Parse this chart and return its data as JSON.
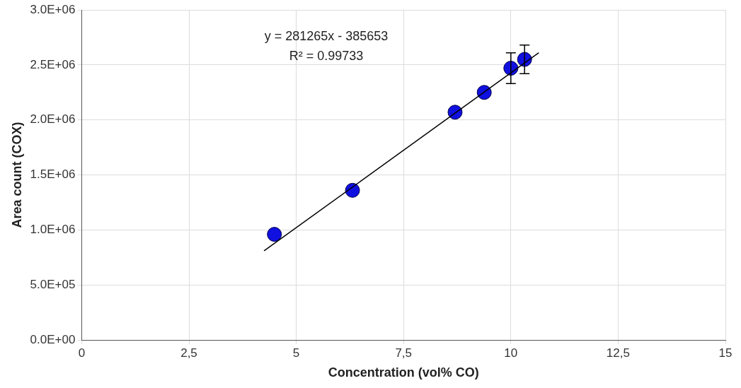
{
  "chart_data": {
    "type": "scatter",
    "xlabel": "Concentration (vol% CO)",
    "ylabel": "Area count (COX)",
    "annotations": [
      "y = 281265x - 385653",
      "R² = 0.99733"
    ],
    "xlim": [
      0,
      15
    ],
    "xticks": [
      0,
      {
        "value": 2.5,
        "label": "2,5"
      },
      5,
      {
        "value": 7.5,
        "label": "7,5"
      },
      10,
      {
        "value": 12.5,
        "label": "12,5"
      },
      15
    ],
    "ylim": [
      0,
      3000000
    ],
    "yticks": [
      {
        "value": 0,
        "label": "0.0E+00"
      },
      {
        "value": 500000,
        "label": "5.0E+05"
      },
      {
        "value": 1000000,
        "label": "1.0E+06"
      },
      {
        "value": 1500000,
        "label": "1.5E+06"
      },
      {
        "value": 2000000,
        "label": "2.0E+06"
      },
      {
        "value": 2500000,
        "label": "2.5E+06"
      },
      {
        "value": 3000000,
        "label": "3.0E+06"
      }
    ],
    "grid": true,
    "legend": false,
    "marker": "circle",
    "series": [
      {
        "type": "line",
        "color": "#000000",
        "marker": "none",
        "x": [
          4.25,
          10.65
        ],
        "values": [
          810000,
          2610000
        ]
      },
      {
        "type": "scatter",
        "color": "#1010e0",
        "x": [
          4.49,
          6.31,
          8.7,
          9.38,
          10.0,
          10.32
        ],
        "values": [
          960000,
          1360000,
          2070000,
          2250000,
          2470000,
          2550000
        ],
        "errors": [
          null,
          null,
          null,
          null,
          140000,
          130000
        ]
      }
    ]
  }
}
